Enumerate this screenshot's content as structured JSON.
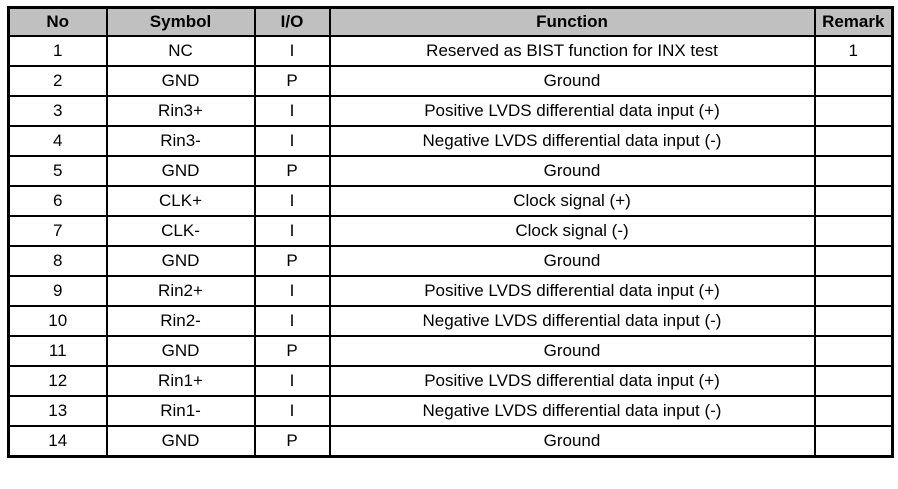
{
  "table": {
    "colors": {
      "header_bg": "#c0c0c0",
      "border": "#000000",
      "text": "#000000",
      "background": "#ffffff"
    },
    "columns": [
      "No",
      "Symbol",
      "I/O",
      "Function",
      "Remark"
    ],
    "rows": [
      {
        "no": "1",
        "symbol": "NC",
        "io": "I",
        "function": "Reserved as BIST function for INX test",
        "remark": "1"
      },
      {
        "no": "2",
        "symbol": "GND",
        "io": "P",
        "function": "Ground",
        "remark": ""
      },
      {
        "no": "3",
        "symbol": "Rin3+",
        "io": "I",
        "function": "Positive LVDS differential data input (+)",
        "remark": ""
      },
      {
        "no": "4",
        "symbol": "Rin3-",
        "io": "I",
        "function": "Negative LVDS differential data input (-)",
        "remark": ""
      },
      {
        "no": "5",
        "symbol": "GND",
        "io": "P",
        "function": "Ground",
        "remark": ""
      },
      {
        "no": "6",
        "symbol": "CLK+",
        "io": "I",
        "function": "Clock signal (+)",
        "remark": ""
      },
      {
        "no": "7",
        "symbol": "CLK-",
        "io": "I",
        "function": "Clock signal (-)",
        "remark": ""
      },
      {
        "no": "8",
        "symbol": "GND",
        "io": "P",
        "function": "Ground",
        "remark": ""
      },
      {
        "no": "9",
        "symbol": "Rin2+",
        "io": "I",
        "function": "Positive LVDS differential data input (+)",
        "remark": ""
      },
      {
        "no": "10",
        "symbol": "Rin2-",
        "io": "I",
        "function": "Negative LVDS differential data input (-)",
        "remark": ""
      },
      {
        "no": "11",
        "symbol": "GND",
        "io": "P",
        "function": "Ground",
        "remark": ""
      },
      {
        "no": "12",
        "symbol": "Rin1+",
        "io": "I",
        "function": "Positive LVDS differential data input (+)",
        "remark": ""
      },
      {
        "no": "13",
        "symbol": "Rin1-",
        "io": "I",
        "function": "Negative LVDS differential data input (-)",
        "remark": ""
      },
      {
        "no": "14",
        "symbol": "GND",
        "io": "P",
        "function": "Ground",
        "remark": ""
      }
    ]
  }
}
